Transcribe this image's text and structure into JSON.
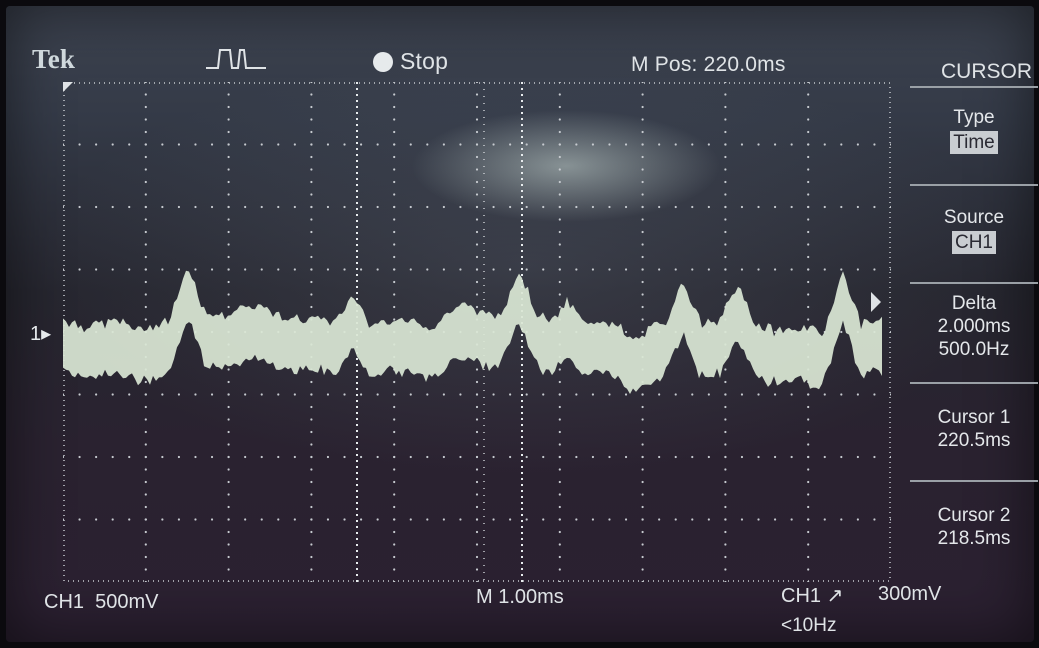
{
  "top_bar": {
    "brand": "Tek",
    "trigger_icon": "trigger-pulse-icon",
    "run_state": "Stop",
    "m_pos": "M Pos: 220.0ms"
  },
  "menu": {
    "title": "CURSOR",
    "items": [
      {
        "label": "Type",
        "value": "Time",
        "highlighted": true
      },
      {
        "label": "Source",
        "value": "CH1",
        "highlighted": true
      },
      {
        "label": "Delta",
        "value": "2.000ms",
        "value2": "500.0Hz"
      },
      {
        "label": "Cursor 1",
        "value": "220.5ms"
      },
      {
        "label": "Cursor 2",
        "value": "218.5ms"
      }
    ]
  },
  "channel": {
    "marker": "1",
    "scale": "CH1  500mV"
  },
  "timebase": "M 1.00ms",
  "trigger": {
    "source": "CH1",
    "slope_icon": "rising-edge-icon",
    "level": "300mV",
    "frequency": "<10Hz"
  },
  "colors": {
    "trace": "#d9e6d4",
    "graticule_dots": "#c7cbd0",
    "cursor_lines": "#e8ecee",
    "text": "#dfe3e6"
  }
}
